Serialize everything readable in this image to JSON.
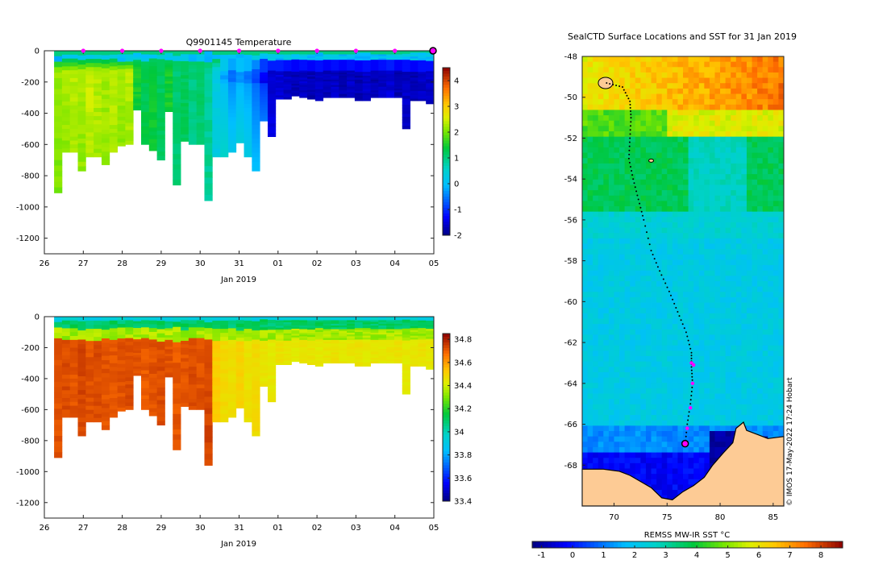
{
  "chart_data": [
    {
      "type": "heatmap",
      "panel": "depth-time-temperature",
      "title": "Q9901145  Temperature",
      "xlabel": "Jan 2019",
      "ylabel": "",
      "x_ticks": [
        "26",
        "27",
        "28",
        "29",
        "30",
        "31",
        "01",
        "02",
        "03",
        "04",
        "05"
      ],
      "y_ticks": [
        0,
        -200,
        -400,
        -600,
        -800,
        -1000,
        -1200
      ],
      "ylim": [
        -1300,
        0
      ],
      "colorbar": {
        "min": -2,
        "max": 4.5,
        "ticks": [
          4,
          3,
          2,
          1,
          0,
          -1,
          -2
        ]
      },
      "profile_markers_day": [
        27,
        28,
        29,
        30,
        31,
        32,
        33,
        34,
        35
      ],
      "current_profile_day": 36.0,
      "profile_start_day": 26.25,
      "profiles_max_depth": [
        910,
        650,
        650,
        770,
        680,
        680,
        730,
        650,
        610,
        600,
        380,
        600,
        640,
        700,
        390,
        860,
        580,
        600,
        600,
        960,
        680,
        680,
        650,
        590,
        680,
        770,
        450,
        550,
        310,
        310,
        290,
        300,
        310,
        320,
        300,
        300,
        300,
        300,
        320,
        320,
        300,
        300,
        300,
        300,
        500,
        320,
        320,
        340
      ],
      "profiles_deep_temp": [
        2.2,
        2.3,
        2.4,
        2.3,
        2.5,
        2.4,
        2.3,
        2.4,
        2.3,
        2.4,
        1.6,
        1.3,
        1.4,
        1.2,
        1.5,
        1.1,
        1.2,
        1.0,
        1.1,
        0.9,
        0.3,
        -0.2,
        -0.6,
        -0.4,
        -0.5,
        -0.8,
        -1.3,
        -1.5,
        -1.5,
        -1.6,
        -1.7,
        -1.6,
        -1.7,
        -1.6,
        -1.7,
        -1.6,
        -1.7,
        -1.6,
        -1.7,
        -1.6,
        -1.7,
        -1.6,
        -1.5,
        -1.7,
        -1.6,
        -1.7,
        -1.6,
        -1.6
      ]
    },
    {
      "type": "heatmap",
      "panel": "depth-time-salinity",
      "title": "",
      "xlabel": "Jan 2019",
      "x_ticks": [
        "26",
        "27",
        "28",
        "29",
        "30",
        "31",
        "01",
        "02",
        "03",
        "04",
        "05"
      ],
      "y_ticks": [
        0,
        -200,
        -400,
        -600,
        -800,
        -1000,
        -1200
      ],
      "ylim": [
        -1300,
        0
      ],
      "colorbar": {
        "min": 33.4,
        "max": 34.85,
        "ticks": [
          34.8,
          34.6,
          34.4,
          34.2,
          34,
          33.8,
          33.6,
          33.4
        ]
      },
      "profiles_deep_sal": [
        34.72,
        34.73,
        34.72,
        34.74,
        34.72,
        34.73,
        34.72,
        34.71,
        34.72,
        34.73,
        34.72,
        34.71,
        34.72,
        34.73,
        34.72,
        34.71,
        34.72,
        34.73,
        34.72,
        34.74,
        34.52,
        34.48,
        34.47,
        34.5,
        34.46,
        34.48,
        34.45,
        34.44,
        34.46,
        34.45,
        34.44,
        34.46,
        34.45,
        34.44,
        34.45,
        34.46,
        34.44,
        34.45,
        34.46,
        34.44,
        34.45,
        34.44,
        34.45,
        34.46,
        34.44,
        34.45,
        34.46,
        34.44
      ]
    },
    {
      "type": "heatmap",
      "panel": "map-sst",
      "title": "SealCTD Surface Locations and SST for 31 Jan 2019",
      "xlabel": "",
      "x_ticks": [
        70,
        75,
        80,
        85
      ],
      "y_ticks": [
        -48,
        -50,
        -52,
        -54,
        -56,
        -58,
        -60,
        -62,
        -64,
        -66,
        -68
      ],
      "xlim": [
        67,
        86
      ],
      "ylim": [
        -70,
        -48
      ],
      "colorbar": {
        "label": "REMSS MW-IR SST °C",
        "min": -1.3,
        "max": 8.7,
        "ticks": [
          -1,
          0,
          1,
          2,
          3,
          4,
          5,
          6,
          7,
          8
        ]
      },
      "track_lonlat": [
        [
          69.3,
          -49.3
        ],
        [
          70.8,
          -49.5
        ],
        [
          71.5,
          -50.2
        ],
        [
          71.6,
          -51.0
        ],
        [
          71.5,
          -52.0
        ],
        [
          71.4,
          -53.0
        ],
        [
          71.8,
          -54.0
        ],
        [
          72.3,
          -55.0
        ],
        [
          72.8,
          -56.0
        ],
        [
          73.5,
          -57.5
        ],
        [
          74.3,
          -58.5
        ],
        [
          75.2,
          -59.5
        ],
        [
          76.0,
          -60.5
        ],
        [
          76.8,
          -61.5
        ],
        [
          77.3,
          -62.5
        ],
        [
          77.3,
          -63.2
        ],
        [
          77.4,
          -64.0
        ],
        [
          77.2,
          -65.0
        ],
        [
          76.9,
          -66.0
        ],
        [
          76.7,
          -67.0
        ]
      ],
      "recent_positions": [
        [
          77.3,
          -63.0
        ],
        [
          77.5,
          -63.1
        ],
        [
          77.4,
          -64.0
        ],
        [
          77.2,
          -65.2
        ],
        [
          76.9,
          -66.2
        ]
      ],
      "current_position": [
        76.7,
        -66.95
      ],
      "watermark": "© IMOS 17-May-2022 17:24 Hobart"
    }
  ]
}
